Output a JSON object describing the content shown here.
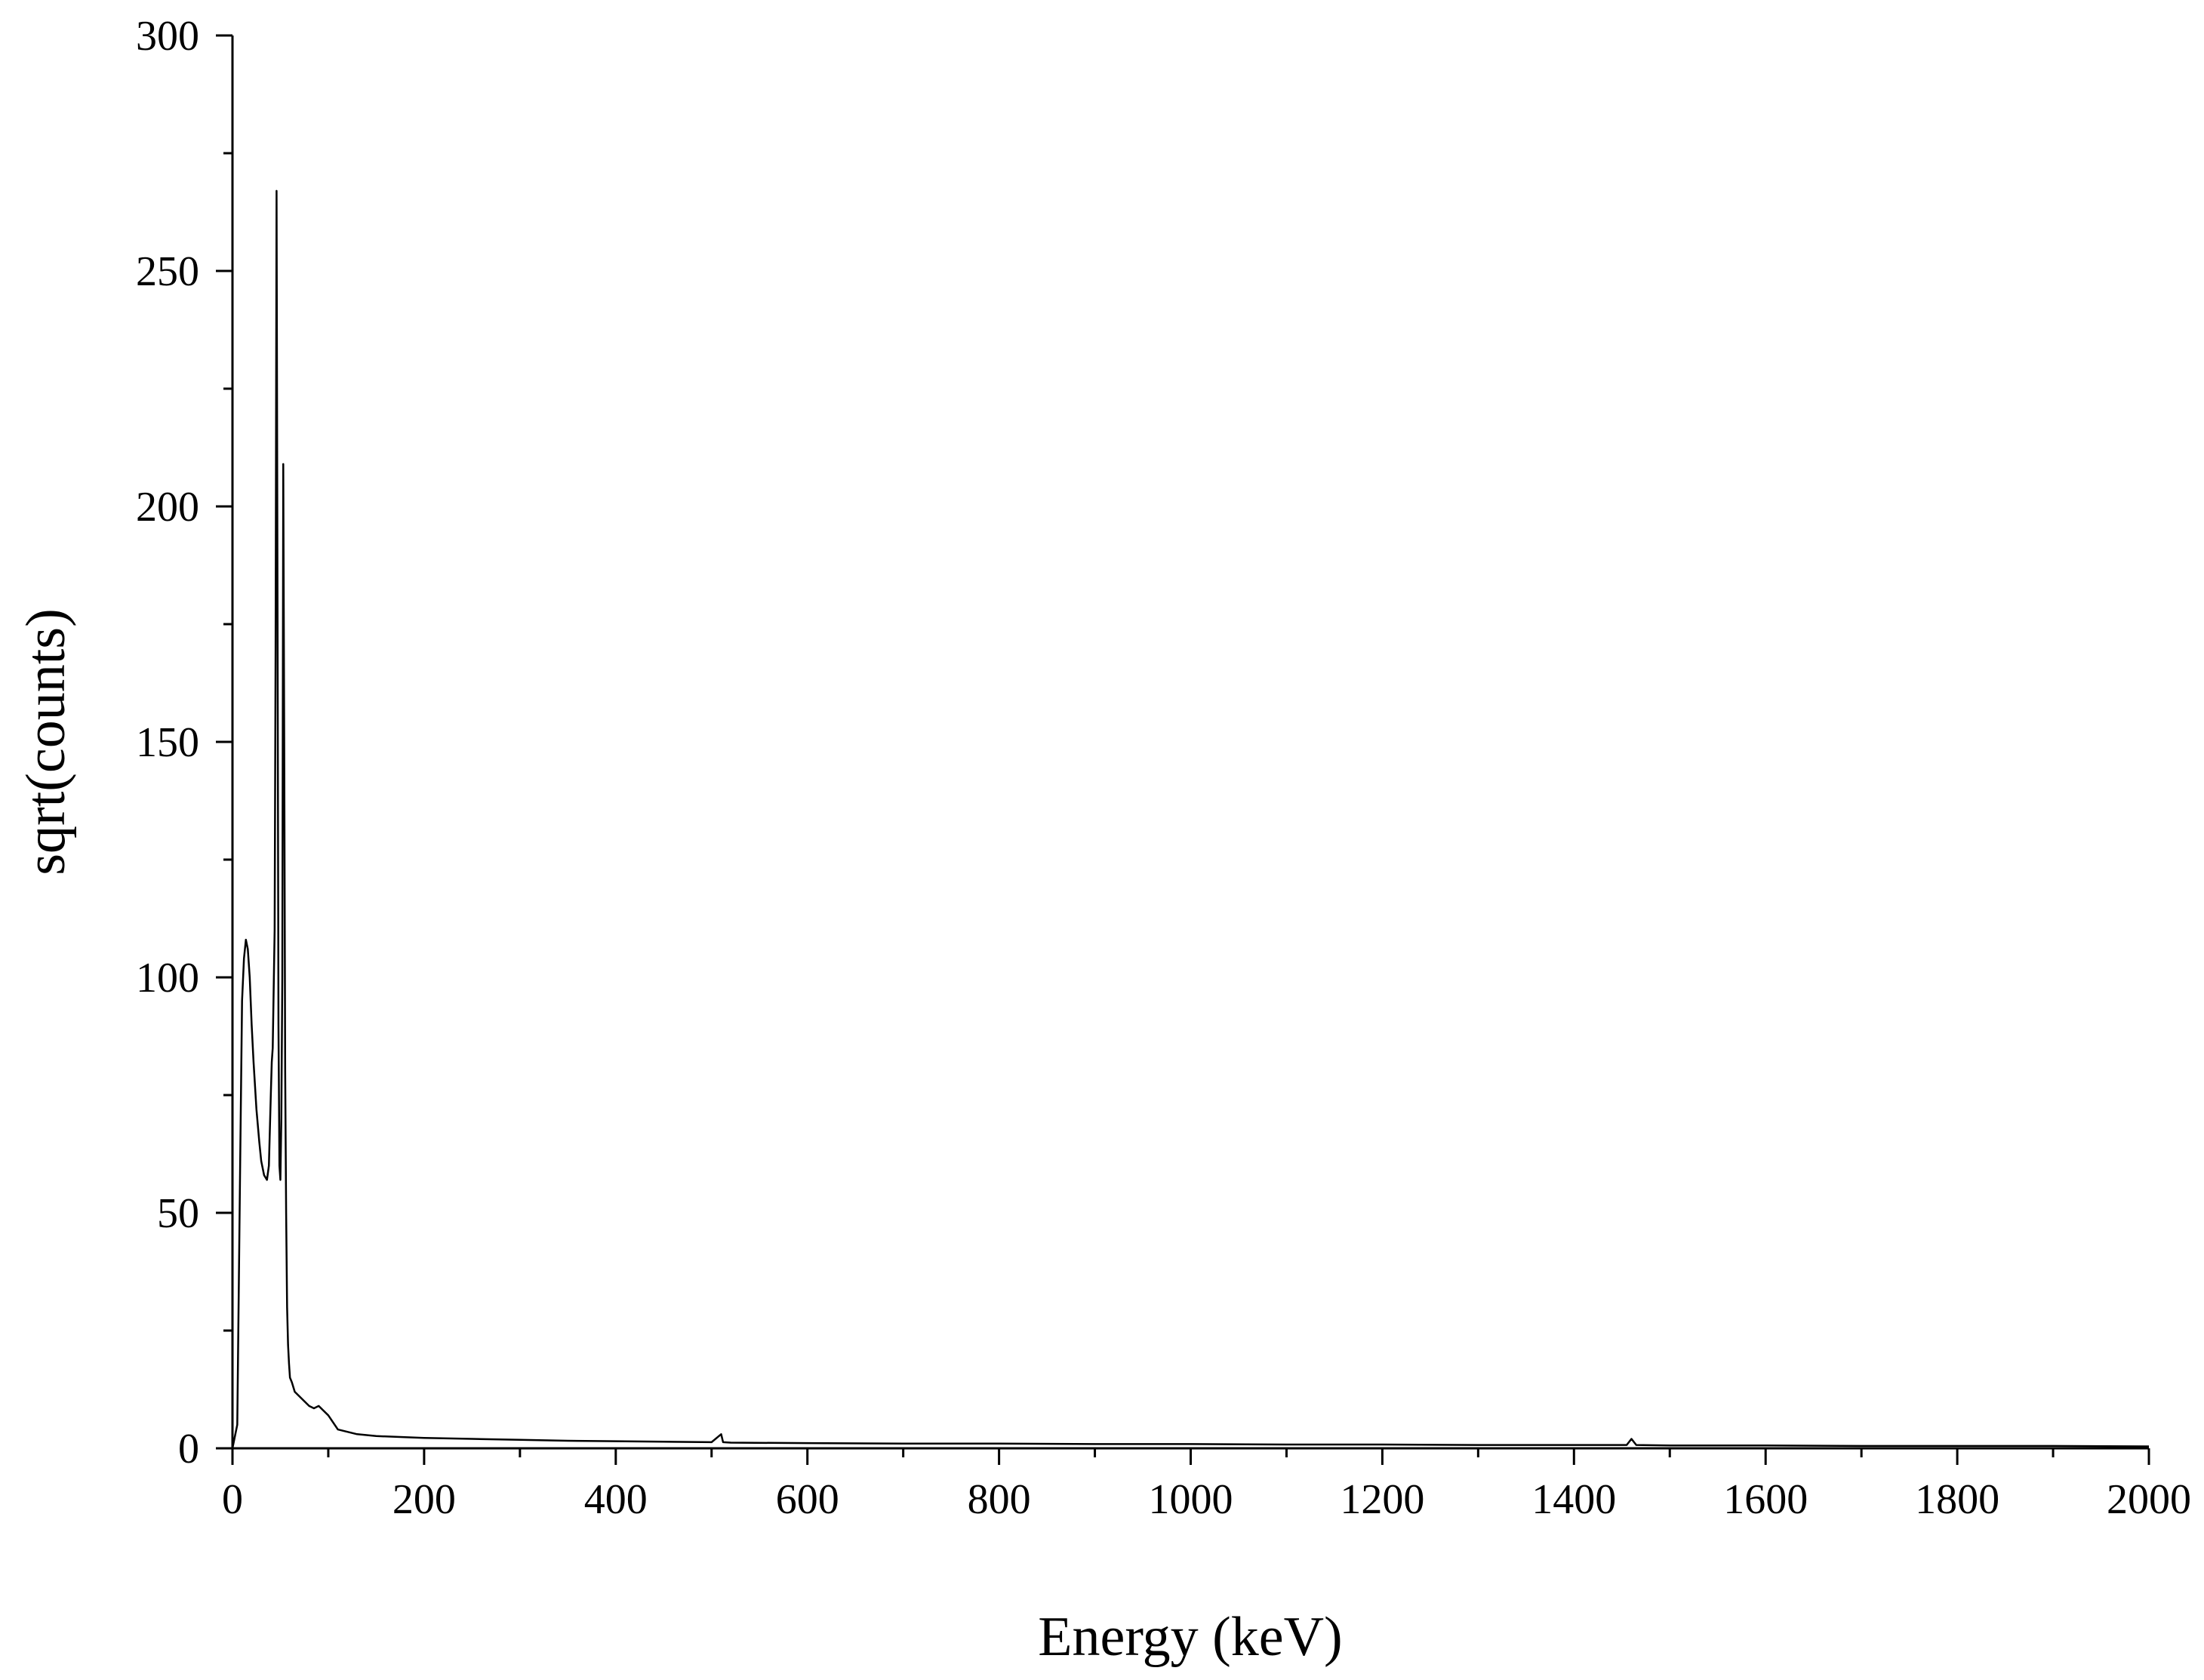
{
  "chart_data": {
    "type": "line",
    "xlabel": "Energy (keV)",
    "ylabel": "sqrt(counts)",
    "xlim": [
      0,
      2000
    ],
    "ylim": [
      0,
      300
    ],
    "x_ticks": [
      0,
      200,
      400,
      600,
      800,
      1000,
      1200,
      1400,
      1600,
      1800,
      2000
    ],
    "y_ticks": [
      0,
      50,
      100,
      150,
      200,
      250,
      300
    ],
    "x_minor_step": 100,
    "y_minor_step": 25,
    "grid": false,
    "line_color": "#000000",
    "series": [
      {
        "x": [
          0,
          5,
          8,
          10,
          12,
          14,
          16,
          18,
          20,
          22,
          25,
          28,
          30,
          33,
          36,
          38,
          40,
          41,
          42,
          44,
          45,
          46,
          47,
          48,
          49,
          50,
          51,
          52,
          53,
          54,
          55,
          56,
          57,
          58,
          59,
          60,
          62,
          65,
          70,
          75,
          80,
          85,
          90,
          95,
          100,
          105,
          110,
          120,
          130,
          140,
          150,
          175,
          200,
          250,
          300,
          350,
          400,
          450,
          500,
          510,
          512,
          520,
          600,
          700,
          800,
          900,
          1000,
          1100,
          1200,
          1300,
          1400,
          1455,
          1460,
          1465,
          1500,
          1600,
          1700,
          1800,
          1900,
          2000
        ],
        "y": [
          0,
          5,
          60,
          95,
          104,
          108,
          106,
          100,
          90,
          82,
          72,
          65,
          61,
          58,
          57,
          60,
          75,
          82,
          85,
          110,
          170,
          267,
          180,
          90,
          60,
          57,
          70,
          100,
          209,
          150,
          80,
          50,
          30,
          22,
          18,
          15,
          14,
          12,
          11,
          10,
          9,
          8.5,
          9,
          8,
          7,
          5.5,
          4,
          3.5,
          3,
          2.8,
          2.6,
          2.4,
          2.2,
          2,
          1.8,
          1.6,
          1.5,
          1.4,
          1.3,
          3,
          1.3,
          1.2,
          1.1,
          1,
          1,
          0.9,
          0.9,
          0.8,
          0.8,
          0.7,
          0.7,
          0.7,
          2,
          0.7,
          0.6,
          0.6,
          0.5,
          0.5,
          0.5,
          0.4
        ]
      }
    ]
  }
}
